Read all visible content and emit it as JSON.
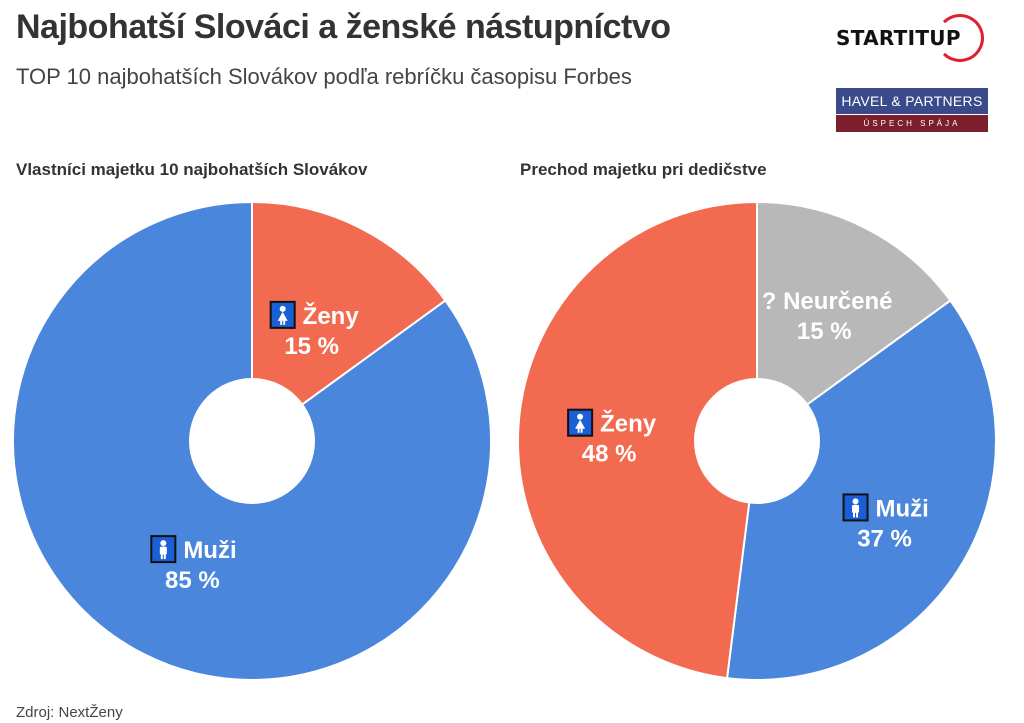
{
  "header": {
    "title": "Najbohatší Slováci a ženské nástupníctvo",
    "subtitle": "TOP 10 najbohatších Slovákov podľa rebríčku časopisu Forbes"
  },
  "logos": {
    "startitup": "STARTITUP",
    "havel_partners": "HAVEL & PARTNERS",
    "havel_partners_tagline": "ÚSPECH SPÁJA"
  },
  "footer": {
    "source": "Zdroj: NextŽeny"
  },
  "colors": {
    "men": "#4a86dc",
    "women": "#f26a4f",
    "undetermined": "#b8b8b8",
    "icon_bg": "#1a5fd6"
  },
  "chart_data": [
    {
      "type": "pie",
      "title": "Vlastníci majetku 10 najbohatších Slovákov",
      "slices": [
        {
          "label": "Ženy",
          "value": 15,
          "value_label": "15 %",
          "color_key": "women",
          "icon": "woman-icon"
        },
        {
          "label": "Muži",
          "value": 85,
          "value_label": "85 %",
          "color_key": "men",
          "icon": "man-icon"
        }
      ]
    },
    {
      "type": "pie",
      "title": "Prechod majetku pri dedičstve",
      "slices": [
        {
          "label": "? Neurčené",
          "value": 15,
          "value_label": "15 %",
          "color_key": "undetermined",
          "icon": ""
        },
        {
          "label": "Muži",
          "value": 37,
          "value_label": "37 %",
          "color_key": "men",
          "icon": "man-icon"
        },
        {
          "label": "Ženy",
          "value": 48,
          "value_label": "48 %",
          "color_key": "women",
          "icon": "woman-icon"
        }
      ]
    }
  ]
}
